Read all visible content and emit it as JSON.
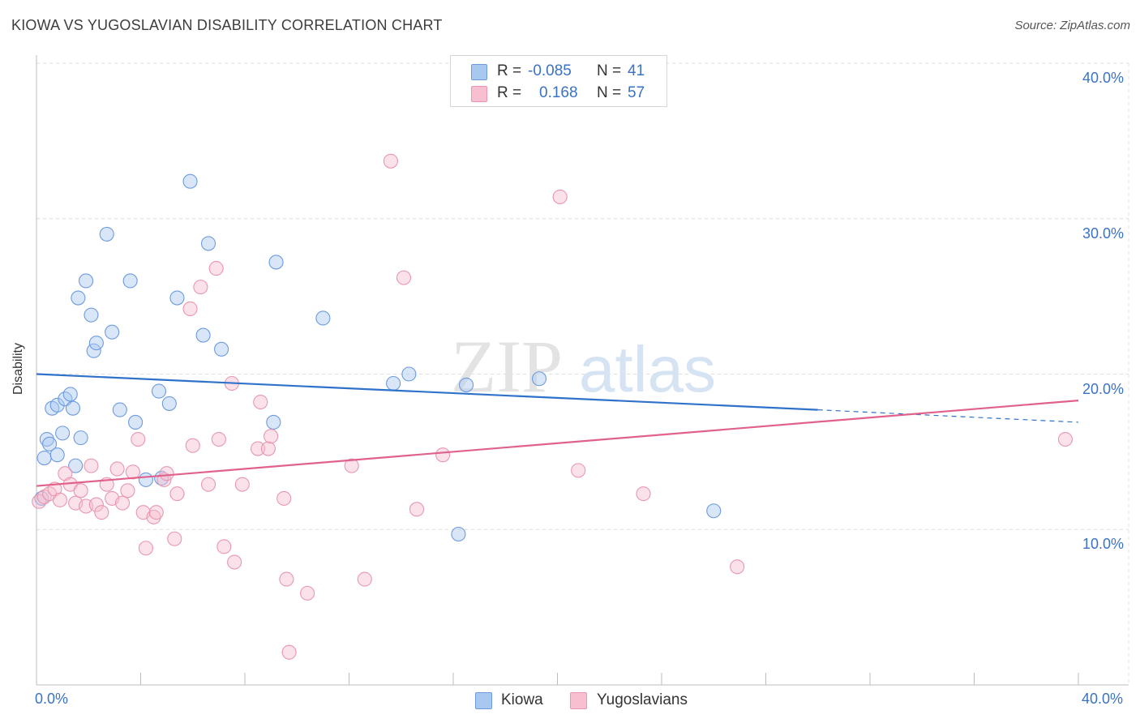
{
  "title": "KIOWA VS YUGOSLAVIAN DISABILITY CORRELATION CHART",
  "source": "Source: ZipAtlas.com",
  "watermark": {
    "part1": "ZIP",
    "part2": "atlas"
  },
  "legend": {
    "rows": [
      {
        "r_label": "R = ",
        "r_value": "-0.085",
        "n_label": "N = ",
        "n_value": "41",
        "color": "#a9c8f0",
        "border": "#6d9be0"
      },
      {
        "r_label": "R = ",
        "r_value": "0.168",
        "n_label": "N = ",
        "n_value": "57",
        "color": "#f7bfd0",
        "border": "#e996ae"
      }
    ]
  },
  "bottom_legend": [
    {
      "label": "Kiowa",
      "color": "#a9c8f0",
      "border": "#6d9be0"
    },
    {
      "label": "Yugoslavians",
      "color": "#f7bfd0",
      "border": "#e996ae"
    }
  ],
  "chart_data": {
    "type": "scatter",
    "title": "KIOWA VS YUGOSLAVIAN DISABILITY CORRELATION CHART",
    "xlabel": "",
    "ylabel": "Disability",
    "xlim": [
      0,
      40
    ],
    "ylim": [
      0,
      40
    ],
    "x_tick_labels": [
      "0.0%",
      "40.0%"
    ],
    "y_tick_labels": [
      "10.0%",
      "20.0%",
      "30.0%",
      "40.0%"
    ],
    "y_ticks": [
      10,
      20,
      30,
      40
    ],
    "grid": true,
    "legend_position": "top-center",
    "series": [
      {
        "name": "Kiowa",
        "color": "#6d9be0",
        "fill": "#a9c8f0",
        "trend_color": "#2f72c9",
        "R": -0.085,
        "N": 41,
        "trend": {
          "x0": 0,
          "y0": 20.0,
          "x1": 30,
          "y1": 17.7,
          "dash_to_x": 40,
          "dash_to_y": 16.9
        },
        "points": [
          [
            0.2,
            12.0
          ],
          [
            0.3,
            14.6
          ],
          [
            0.4,
            15.8
          ],
          [
            0.5,
            15.5
          ],
          [
            0.6,
            17.8
          ],
          [
            0.8,
            14.8
          ],
          [
            0.8,
            18.0
          ],
          [
            1.0,
            16.2
          ],
          [
            1.1,
            18.4
          ],
          [
            1.3,
            18.7
          ],
          [
            1.4,
            17.8
          ],
          [
            1.5,
            14.1
          ],
          [
            1.6,
            24.9
          ],
          [
            1.7,
            15.9
          ],
          [
            1.9,
            26.0
          ],
          [
            2.1,
            23.8
          ],
          [
            2.2,
            21.5
          ],
          [
            2.3,
            22.0
          ],
          [
            2.7,
            29.0
          ],
          [
            2.9,
            22.7
          ],
          [
            3.2,
            17.7
          ],
          [
            3.6,
            26.0
          ],
          [
            3.8,
            16.9
          ],
          [
            4.2,
            13.2
          ],
          [
            4.7,
            18.9
          ],
          [
            4.8,
            13.3
          ],
          [
            5.1,
            18.1
          ],
          [
            5.4,
            24.9
          ],
          [
            5.9,
            32.4
          ],
          [
            6.4,
            22.5
          ],
          [
            6.6,
            28.4
          ],
          [
            7.1,
            21.6
          ],
          [
            9.1,
            16.9
          ],
          [
            9.2,
            27.2
          ],
          [
            11.0,
            23.6
          ],
          [
            13.7,
            19.4
          ],
          [
            14.3,
            20.0
          ],
          [
            16.2,
            9.7
          ],
          [
            16.5,
            19.3
          ],
          [
            19.3,
            19.7
          ],
          [
            26.0,
            11.2
          ]
        ]
      },
      {
        "name": "Yugoslavians",
        "color": "#e996ae",
        "fill": "#f7bfd0",
        "trend_color": "#e0628a",
        "R": 0.168,
        "N": 57,
        "trend": {
          "x0": 0,
          "y0": 12.8,
          "x1": 40,
          "y1": 18.3
        },
        "points": [
          [
            0.1,
            11.8
          ],
          [
            0.3,
            12.1
          ],
          [
            0.5,
            12.3
          ],
          [
            0.7,
            12.6
          ],
          [
            0.9,
            11.9
          ],
          [
            1.1,
            13.6
          ],
          [
            1.3,
            12.9
          ],
          [
            1.5,
            11.7
          ],
          [
            1.7,
            12.5
          ],
          [
            1.9,
            11.5
          ],
          [
            2.1,
            14.1
          ],
          [
            2.3,
            11.6
          ],
          [
            2.5,
            11.1
          ],
          [
            2.7,
            12.9
          ],
          [
            2.9,
            12.0
          ],
          [
            3.1,
            13.9
          ],
          [
            3.3,
            11.7
          ],
          [
            3.5,
            12.5
          ],
          [
            3.7,
            13.7
          ],
          [
            3.9,
            15.8
          ],
          [
            4.1,
            11.1
          ],
          [
            4.2,
            8.8
          ],
          [
            4.5,
            10.8
          ],
          [
            4.6,
            11.1
          ],
          [
            4.9,
            13.2
          ],
          [
            5.0,
            13.6
          ],
          [
            5.3,
            9.4
          ],
          [
            5.4,
            12.3
          ],
          [
            5.9,
            24.2
          ],
          [
            6.0,
            15.4
          ],
          [
            6.3,
            25.6
          ],
          [
            6.6,
            12.9
          ],
          [
            6.9,
            26.8
          ],
          [
            7.0,
            15.8
          ],
          [
            7.2,
            8.9
          ],
          [
            7.5,
            19.4
          ],
          [
            7.6,
            7.9
          ],
          [
            7.9,
            12.9
          ],
          [
            8.5,
            15.2
          ],
          [
            8.6,
            18.2
          ],
          [
            8.9,
            15.2
          ],
          [
            9.0,
            16.0
          ],
          [
            9.5,
            12.0
          ],
          [
            9.6,
            6.8
          ],
          [
            9.7,
            2.1
          ],
          [
            10.4,
            5.9
          ],
          [
            12.1,
            14.1
          ],
          [
            12.6,
            6.8
          ],
          [
            13.6,
            33.7
          ],
          [
            14.1,
            26.2
          ],
          [
            14.6,
            11.3
          ],
          [
            15.6,
            14.8
          ],
          [
            20.1,
            31.4
          ],
          [
            20.8,
            13.8
          ],
          [
            23.3,
            12.3
          ],
          [
            26.9,
            7.6
          ],
          [
            39.5,
            15.8
          ]
        ]
      }
    ]
  }
}
